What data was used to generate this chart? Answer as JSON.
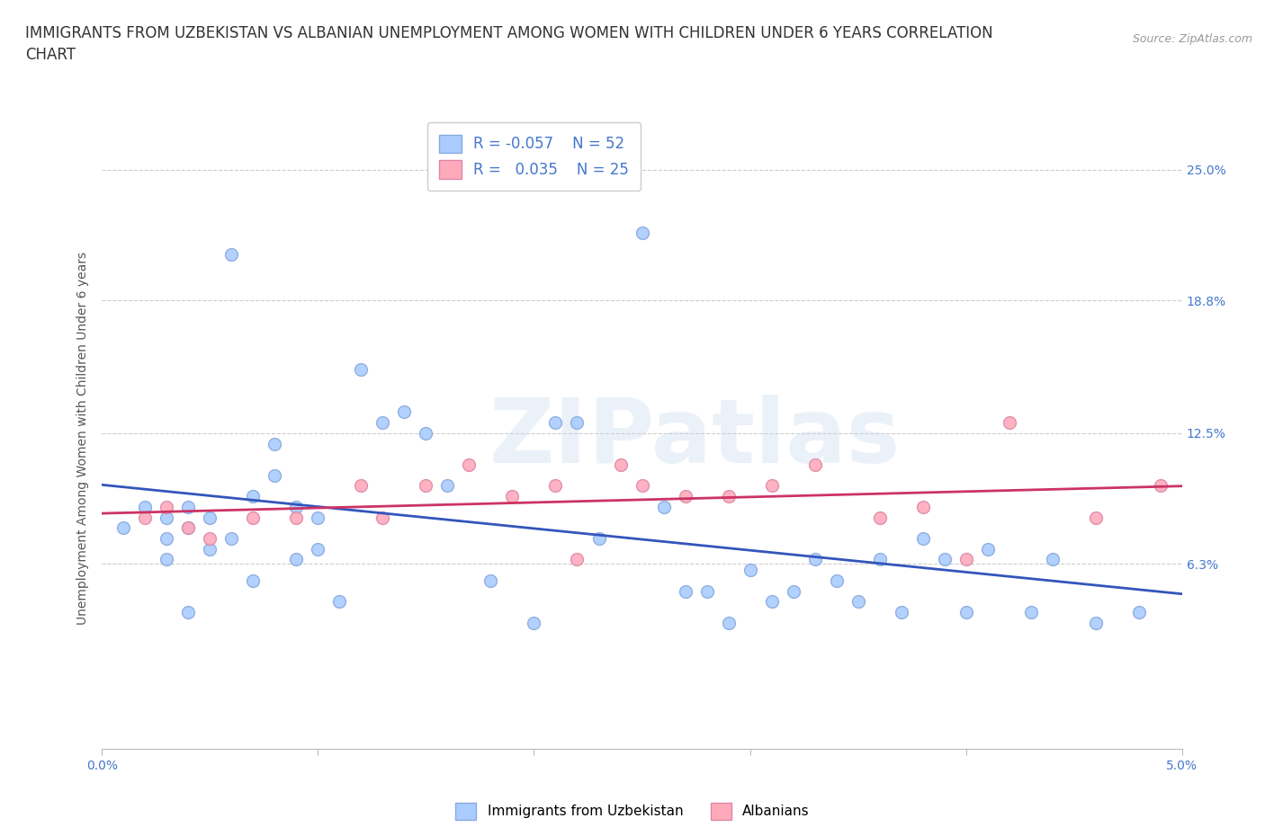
{
  "title": "IMMIGRANTS FROM UZBEKISTAN VS ALBANIAN UNEMPLOYMENT AMONG WOMEN WITH CHILDREN UNDER 6 YEARS CORRELATION\nCHART",
  "source": "Source: ZipAtlas.com",
  "ylabel": "Unemployment Among Women with Children Under 6 years",
  "xlim": [
    0.0,
    0.05
  ],
  "ylim": [
    -0.025,
    0.27
  ],
  "yticks": [
    0.063,
    0.125,
    0.188,
    0.25
  ],
  "ytick_labels": [
    "6.3%",
    "12.5%",
    "18.8%",
    "25.0%"
  ],
  "xticks": [
    0.0,
    0.01,
    0.02,
    0.03,
    0.04,
    0.05
  ],
  "xtick_labels": [
    "0.0%",
    "",
    "",
    "",
    "",
    "5.0%"
  ],
  "background_color": "#ffffff",
  "grid_color": "#cccccc",
  "uzbek_color": "#aaccff",
  "uzbek_edge_color": "#88aadd",
  "albanian_color": "#ffaabb",
  "albanian_edge_color": "#dd88aa",
  "uzbek_line_color": "#3355bb",
  "albanian_line_color": "#cc3366",
  "tick_color": "#4477cc",
  "legend_R_uzbek": "-0.057",
  "legend_N_uzbek": "52",
  "legend_R_albanian": "0.035",
  "legend_N_albanian": "25",
  "uzbek_scatter_x": [
    0.001,
    0.002,
    0.003,
    0.003,
    0.003,
    0.004,
    0.004,
    0.004,
    0.005,
    0.005,
    0.006,
    0.006,
    0.007,
    0.007,
    0.008,
    0.008,
    0.009,
    0.009,
    0.01,
    0.01,
    0.011,
    0.012,
    0.013,
    0.014,
    0.015,
    0.016,
    0.018,
    0.02,
    0.021,
    0.022,
    0.023,
    0.025,
    0.026,
    0.027,
    0.028,
    0.029,
    0.03,
    0.031,
    0.032,
    0.033,
    0.034,
    0.035,
    0.036,
    0.037,
    0.038,
    0.039,
    0.04,
    0.041,
    0.043,
    0.044,
    0.046,
    0.048
  ],
  "uzbek_scatter_y": [
    0.08,
    0.09,
    0.085,
    0.075,
    0.065,
    0.09,
    0.08,
    0.04,
    0.07,
    0.085,
    0.21,
    0.075,
    0.095,
    0.055,
    0.12,
    0.105,
    0.09,
    0.065,
    0.085,
    0.07,
    0.045,
    0.155,
    0.13,
    0.135,
    0.125,
    0.1,
    0.055,
    0.035,
    0.13,
    0.13,
    0.075,
    0.22,
    0.09,
    0.05,
    0.05,
    0.035,
    0.06,
    0.045,
    0.05,
    0.065,
    0.055,
    0.045,
    0.065,
    0.04,
    0.075,
    0.065,
    0.04,
    0.07,
    0.04,
    0.065,
    0.035,
    0.04
  ],
  "albanian_scatter_x": [
    0.002,
    0.003,
    0.004,
    0.005,
    0.007,
    0.009,
    0.012,
    0.013,
    0.015,
    0.017,
    0.019,
    0.021,
    0.022,
    0.024,
    0.025,
    0.027,
    0.029,
    0.031,
    0.033,
    0.036,
    0.038,
    0.04,
    0.042,
    0.046,
    0.049
  ],
  "albanian_scatter_y": [
    0.085,
    0.09,
    0.08,
    0.075,
    0.085,
    0.085,
    0.1,
    0.085,
    0.1,
    0.11,
    0.095,
    0.1,
    0.065,
    0.11,
    0.1,
    0.095,
    0.095,
    0.1,
    0.11,
    0.085,
    0.09,
    0.065,
    0.13,
    0.085,
    0.1
  ],
  "watermark_line1": "ZI",
  "watermark_line2": "Patlas",
  "title_fontsize": 12,
  "label_fontsize": 10,
  "tick_fontsize": 10,
  "legend_fontsize": 12,
  "marker_size": 100
}
